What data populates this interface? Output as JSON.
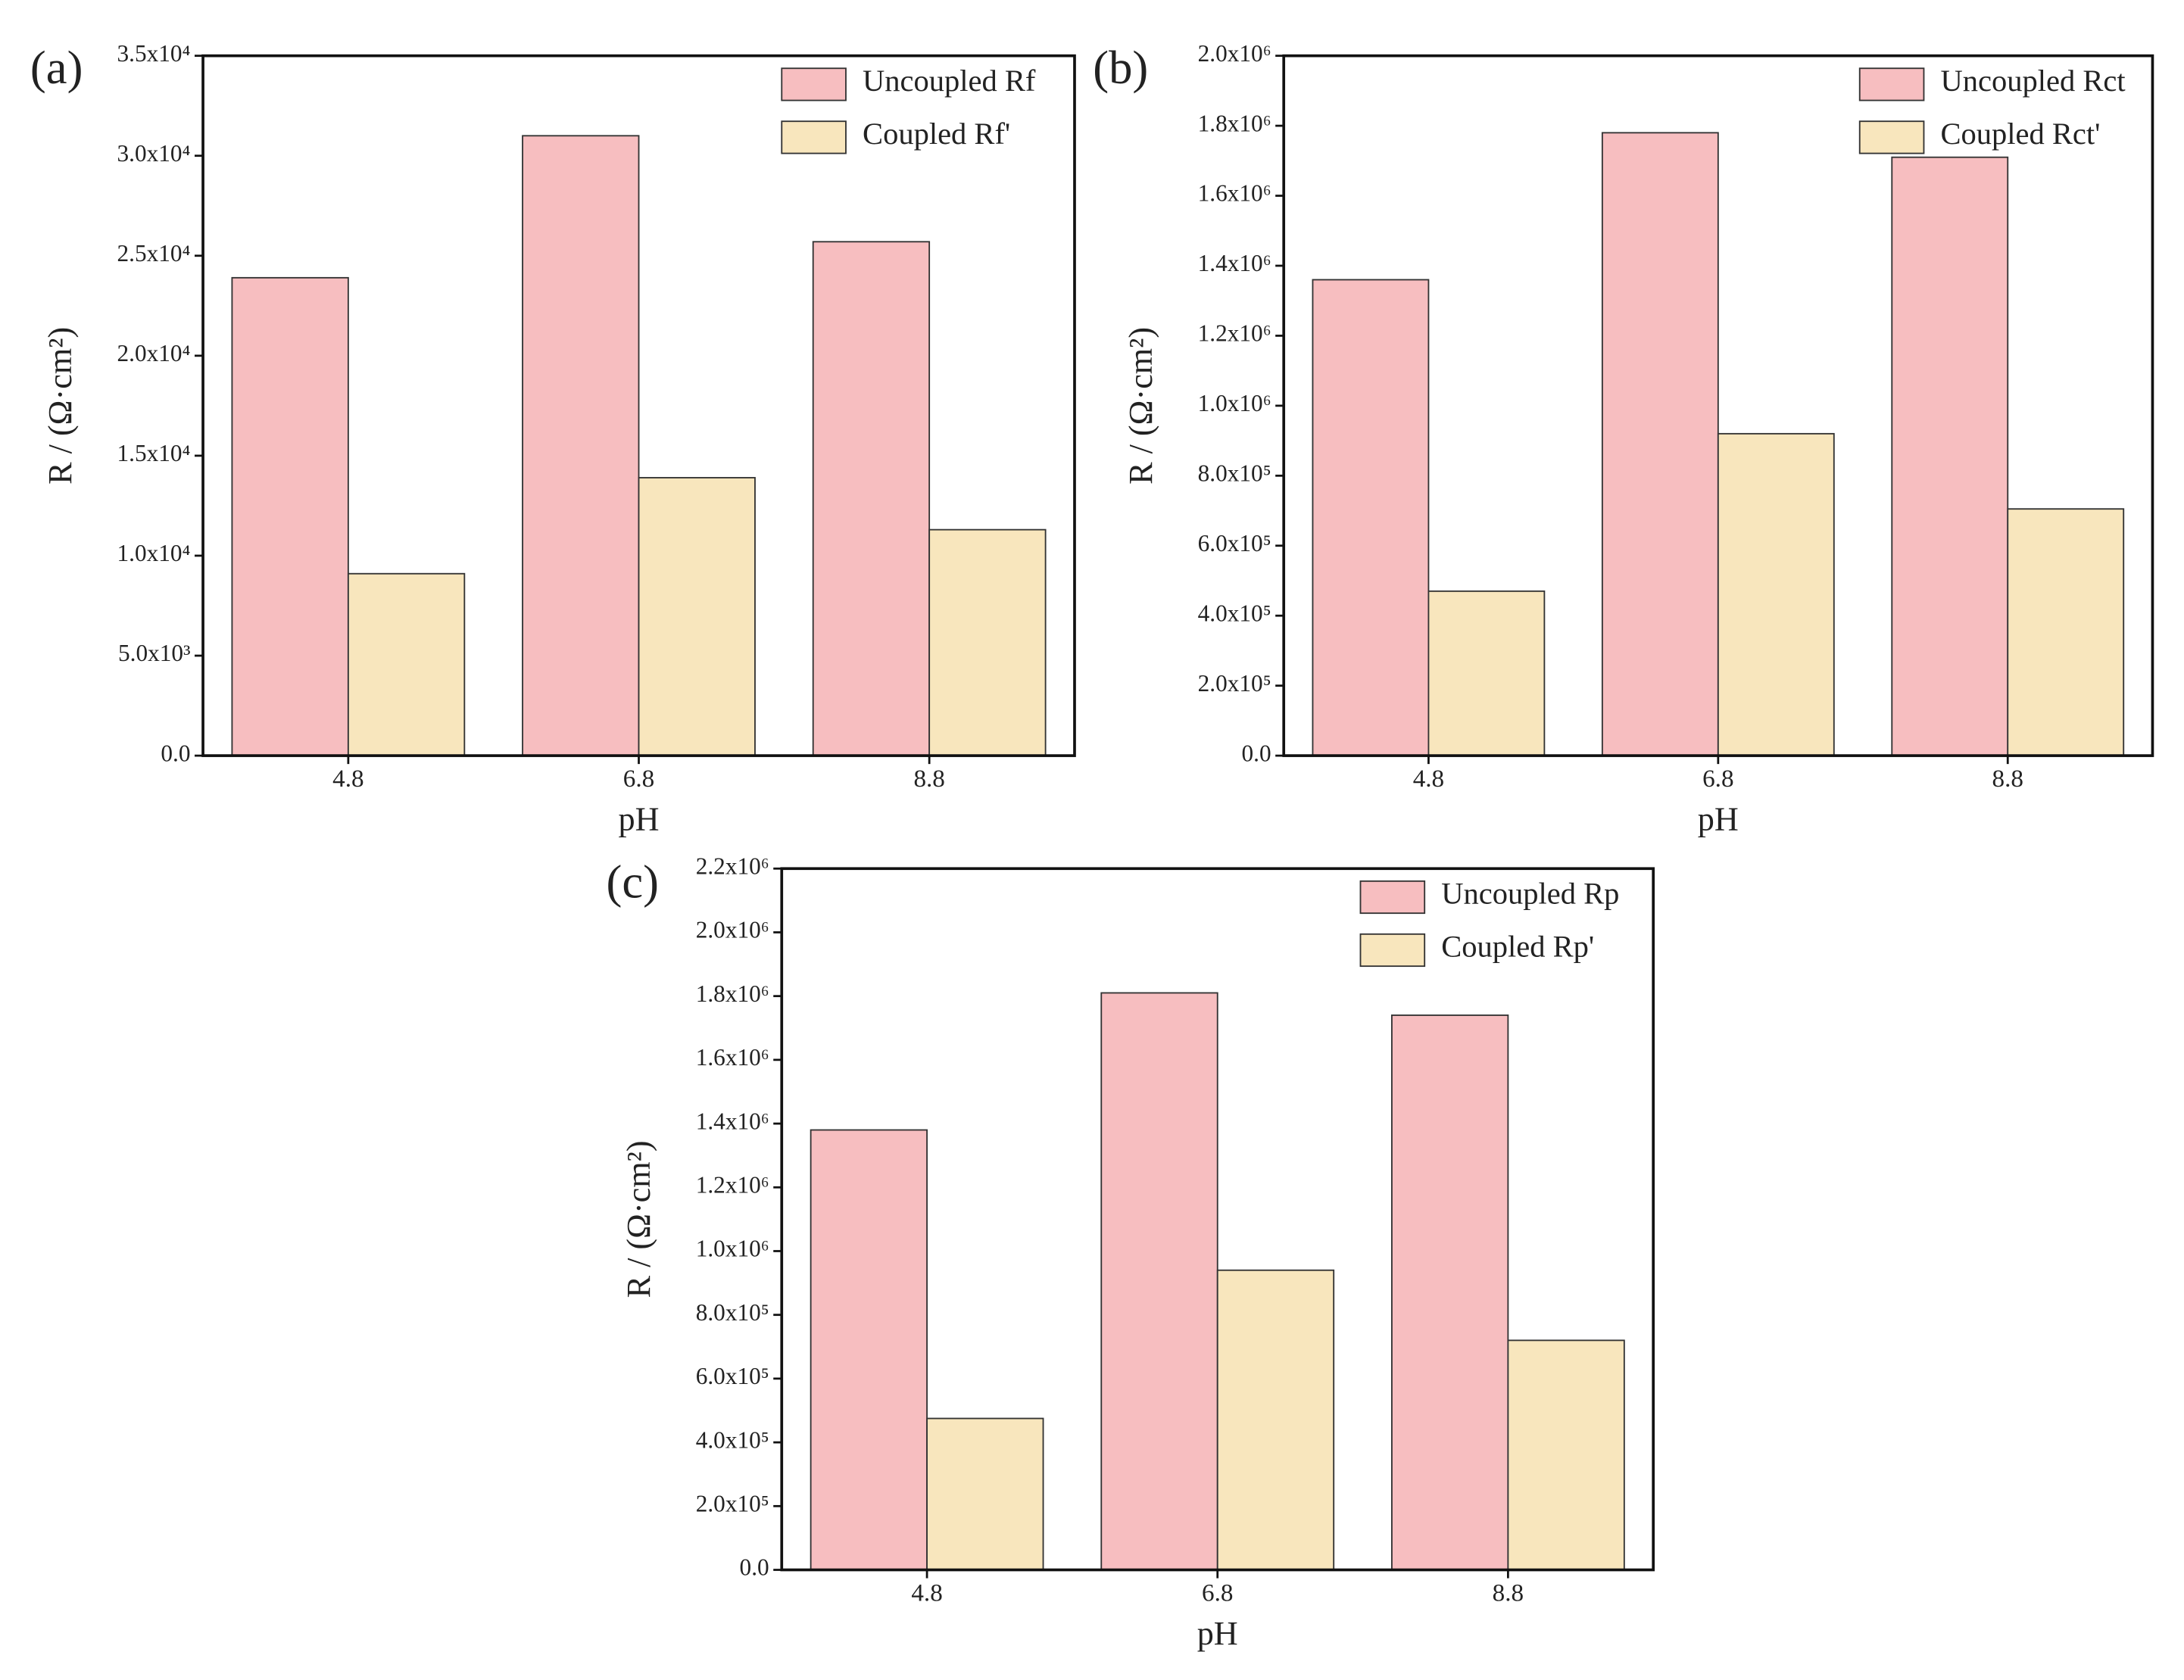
{
  "chart_data": [
    {
      "type": "bar",
      "panel": "(a)",
      "xlabel": "pH",
      "ylabel": "R / (Ω·cm²)",
      "legend": "upper right",
      "categories": [
        "4.8",
        "6.8",
        "8.8"
      ],
      "series": [
        {
          "name": "Uncoupled Rf",
          "color": "#f7bec0",
          "values": [
            23900,
            31000,
            25700
          ]
        },
        {
          "name": "Coupled Rf'",
          "color": "#f8e6bd",
          "values": [
            9100,
            13900,
            11300
          ]
        }
      ],
      "ylim": [
        0,
        35000
      ],
      "yticks": [
        {
          "value": 0,
          "label": "0.0"
        },
        {
          "value": 5000,
          "label": "5.0x10³"
        },
        {
          "value": 10000,
          "label": "1.0x10⁴"
        },
        {
          "value": 15000,
          "label": "1.5x10⁴"
        },
        {
          "value": 20000,
          "label": "2.0x10⁴"
        },
        {
          "value": 25000,
          "label": "2.5x10⁴"
        },
        {
          "value": 30000,
          "label": "3.0x10⁴"
        },
        {
          "value": 35000,
          "label": "3.5x10⁴"
        }
      ]
    },
    {
      "type": "bar",
      "panel": "(b)",
      "xlabel": "pH",
      "ylabel": "R / (Ω·cm²)",
      "legend": "upper right",
      "categories": [
        "4.8",
        "6.8",
        "8.8"
      ],
      "series": [
        {
          "name": "Uncoupled Rct",
          "color": "#f7bec0",
          "values": [
            1360000,
            1780000,
            1710000
          ]
        },
        {
          "name": "Coupled Rct'",
          "color": "#f8e6bd",
          "values": [
            470000,
            920000,
            705000
          ]
        }
      ],
      "ylim": [
        0,
        2000000
      ],
      "yticks": [
        {
          "value": 0,
          "label": "0.0"
        },
        {
          "value": 200000,
          "label": "2.0x10⁵"
        },
        {
          "value": 400000,
          "label": "4.0x10⁵"
        },
        {
          "value": 600000,
          "label": "6.0x10⁵"
        },
        {
          "value": 800000,
          "label": "8.0x10⁵"
        },
        {
          "value": 1000000,
          "label": "1.0x10⁶"
        },
        {
          "value": 1200000,
          "label": "1.2x10⁶"
        },
        {
          "value": 1400000,
          "label": "1.4x10⁶"
        },
        {
          "value": 1600000,
          "label": "1.6x10⁶"
        },
        {
          "value": 1800000,
          "label": "1.8x10⁶"
        },
        {
          "value": 2000000,
          "label": "2.0x10⁶"
        }
      ]
    },
    {
      "type": "bar",
      "panel": "(c)",
      "xlabel": "pH",
      "ylabel": "R / (Ω·cm²)",
      "legend": "upper right",
      "categories": [
        "4.8",
        "6.8",
        "8.8"
      ],
      "series": [
        {
          "name": "Uncoupled Rp",
          "color": "#f7bec0",
          "values": [
            1380000,
            1810000,
            1740000
          ]
        },
        {
          "name": "Coupled Rp'",
          "color": "#f8e6bd",
          "values": [
            475000,
            940000,
            720000
          ]
        }
      ],
      "ylim": [
        0,
        2200000
      ],
      "yticks": [
        {
          "value": 0,
          "label": "0.0"
        },
        {
          "value": 200000,
          "label": "2.0x10⁵"
        },
        {
          "value": 400000,
          "label": "4.0x10⁵"
        },
        {
          "value": 600000,
          "label": "6.0x10⁵"
        },
        {
          "value": 800000,
          "label": "8.0x10⁵"
        },
        {
          "value": 1000000,
          "label": "1.0x10⁶"
        },
        {
          "value": 1200000,
          "label": "1.2x10⁶"
        },
        {
          "value": 1400000,
          "label": "1.4x10⁶"
        },
        {
          "value": 1600000,
          "label": "1.6x10⁶"
        },
        {
          "value": 1800000,
          "label": "1.8x10⁶"
        },
        {
          "value": 2000000,
          "label": "2.0x10⁶"
        },
        {
          "value": 2200000,
          "label": "2.2x10⁶"
        }
      ]
    }
  ]
}
